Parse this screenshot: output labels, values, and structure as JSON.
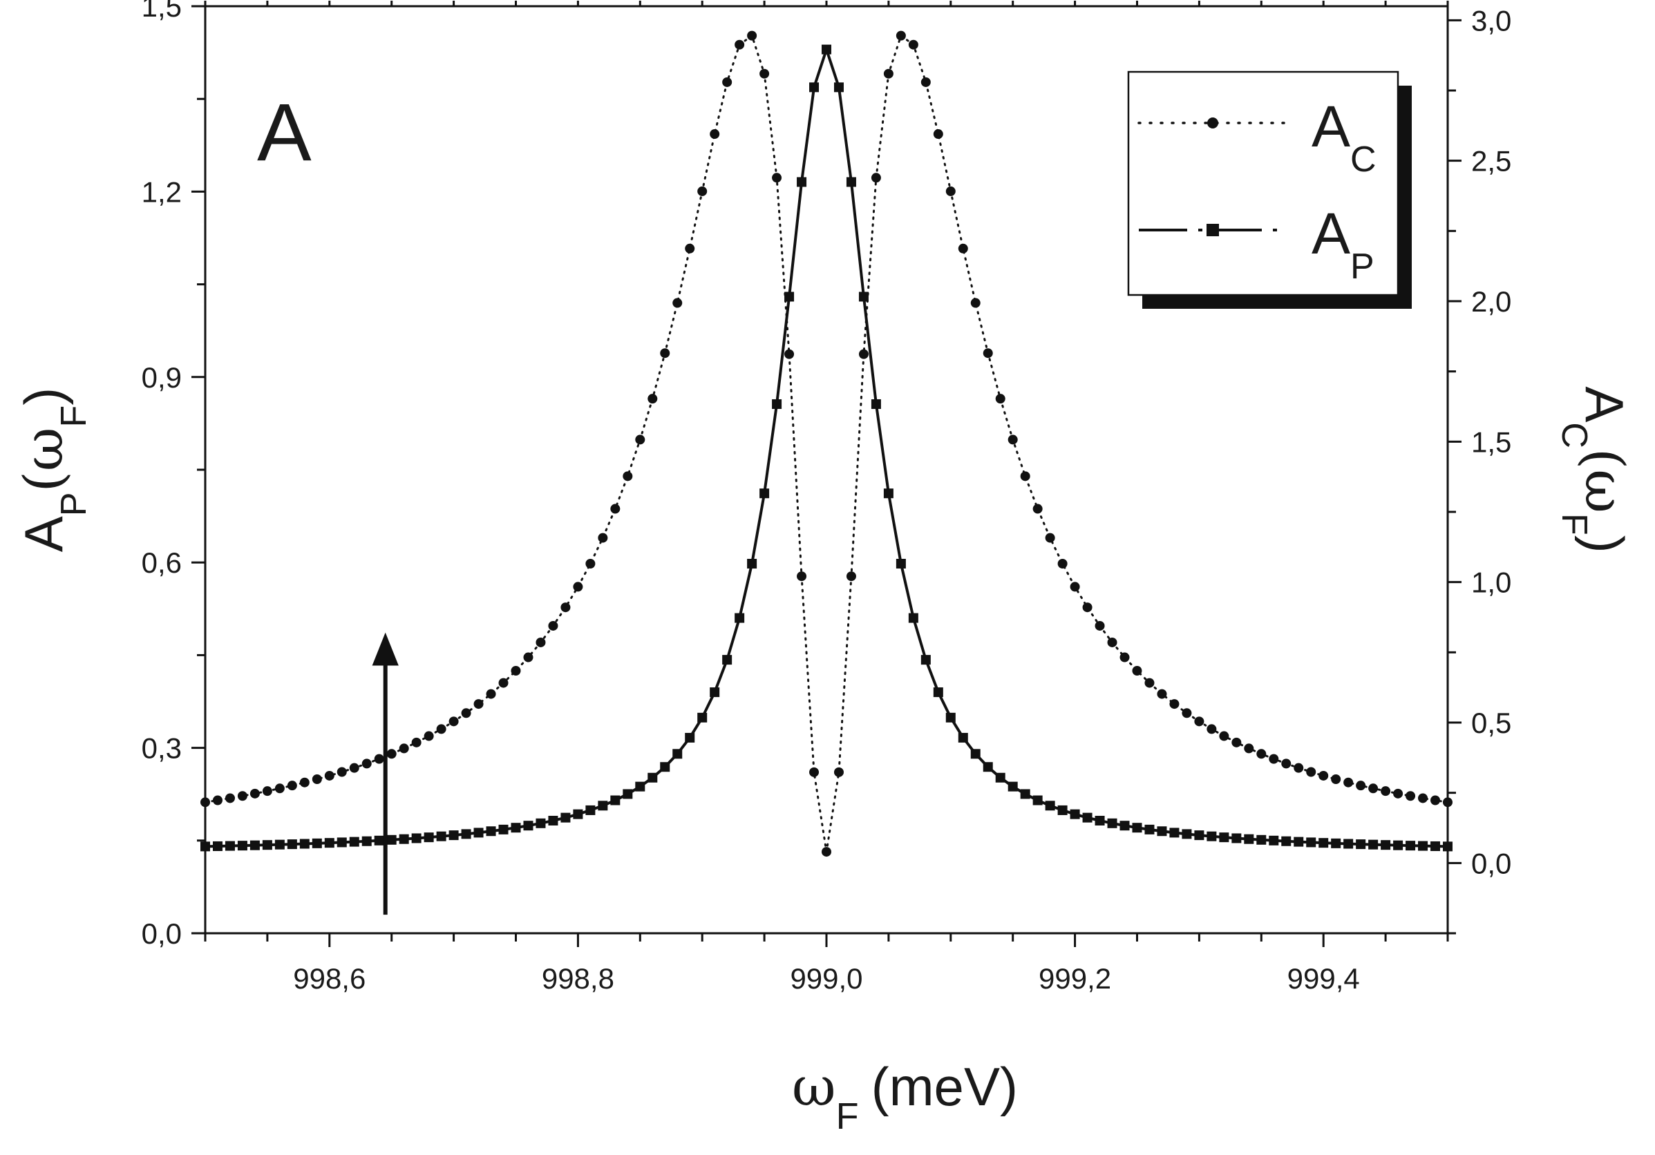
{
  "chart_data": {
    "type": "line",
    "panel_label": "A",
    "x": {
      "label_main": "ω",
      "label_sub": "F",
      "label_unit": "(meV)",
      "range": [
        998.5,
        999.5
      ],
      "ticks": [
        {
          "value": 998.6,
          "label": "998,6"
        },
        {
          "value": 998.8,
          "label": "998,8"
        },
        {
          "value": 999.0,
          "label": "999,0"
        },
        {
          "value": 999.2,
          "label": "999,2"
        },
        {
          "value": 999.4,
          "label": "999,4"
        }
      ]
    },
    "y_left": {
      "label_main": "A",
      "label_sub": "P",
      "label_arg_open": "(ω",
      "label_arg_sub": "F",
      "label_close": ")",
      "range": [
        0.0,
        1.5
      ],
      "ticks": [
        {
          "value": 0.0,
          "label": "0,0"
        },
        {
          "value": 0.3,
          "label": "0,3"
        },
        {
          "value": 0.6,
          "label": "0,6"
        },
        {
          "value": 0.9,
          "label": "0,9"
        },
        {
          "value": 1.2,
          "label": "1,2"
        },
        {
          "value": 1.5,
          "label": "1,5"
        }
      ]
    },
    "y_right": {
      "label_main": "A",
      "label_sub": "C",
      "label_arg_open": "(ω",
      "label_arg_sub": "F",
      "label_close": ")",
      "range": [
        -0.25,
        3.05
      ],
      "ticks": [
        {
          "value": 0.0,
          "label": "0,0"
        },
        {
          "value": 0.5,
          "label": "0,5"
        },
        {
          "value": 1.0,
          "label": "1,0"
        },
        {
          "value": 1.5,
          "label": "1,5"
        },
        {
          "value": 2.0,
          "label": "2,0"
        },
        {
          "value": 2.5,
          "label": "2,5"
        },
        {
          "value": 3.0,
          "label": "3,0"
        }
      ]
    },
    "series": [
      {
        "name": "A_C",
        "label_main": "A",
        "label_sub": "C",
        "axis": "right",
        "line_style": "dotted",
        "marker": "circle",
        "model": {
          "center": 999.0,
          "gamma": 0.0625,
          "peak": 3.0
        },
        "x_range": [
          998.5,
          999.5
        ],
        "n_points": 101
      },
      {
        "name": "A_P",
        "label_main": "A",
        "label_sub": "P",
        "axis": "left",
        "line_style": "dash-dot",
        "marker": "square",
        "model": {
          "center": 999.0,
          "gamma": 0.0625,
          "peak": 1.43,
          "baseline": 0.13
        },
        "x_range": [
          998.5,
          999.5
        ],
        "n_points": 101
      }
    ],
    "annotations": [
      {
        "type": "arrow",
        "x": 998.645,
        "from_left_y": 0.03,
        "to_left_y": 0.5
      }
    ],
    "legend": {
      "position": "top-right"
    },
    "grid": false
  }
}
